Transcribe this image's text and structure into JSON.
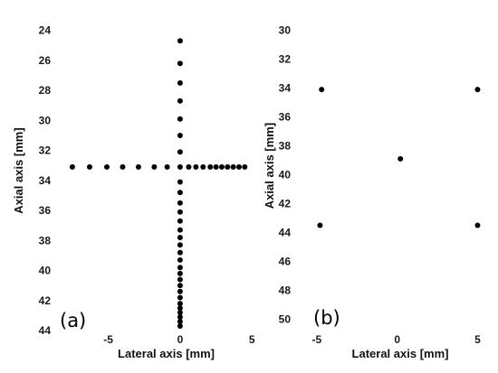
{
  "chart_data": [
    {
      "type": "scatter",
      "panel_label": "(a)",
      "xlabel": "Lateral axis [mm]",
      "ylabel": "Axial axis [mm]",
      "xlim": [
        -8,
        5.3
      ],
      "ylim": [
        44,
        23.9
      ],
      "y_inverted": true,
      "xticks": [
        -5,
        0,
        5
      ],
      "yticks": [
        24,
        26,
        28,
        30,
        32,
        34,
        36,
        38,
        40,
        42,
        44
      ],
      "grid": false,
      "series": [
        {
          "x": [
            0,
            0,
            0,
            0,
            0,
            0,
            0,
            0,
            0,
            0,
            0,
            0,
            0,
            0,
            0,
            0,
            0,
            0,
            0,
            0,
            0,
            0,
            0,
            0,
            0,
            0,
            0,
            0,
            0,
            0,
            -7.5,
            -6.3,
            -5.1,
            -4.0,
            -2.9,
            -1.8,
            -0.9,
            0.6,
            1.1,
            1.6,
            2.1,
            2.5,
            2.9,
            3.3,
            3.7,
            4.1,
            4.5
          ],
          "y": [
            24.7,
            26.2,
            27.5,
            28.7,
            29.9,
            31.0,
            32.1,
            33.1,
            34.1,
            34.8,
            35.5,
            36.1,
            36.7,
            37.3,
            37.8,
            38.3,
            38.8,
            39.3,
            39.8,
            40.2,
            40.6,
            41.0,
            41.4,
            41.8,
            42.2,
            42.5,
            42.8,
            43.1,
            43.4,
            43.7,
            33.1,
            33.1,
            33.1,
            33.1,
            33.1,
            33.1,
            33.1,
            33.1,
            33.1,
            33.1,
            33.1,
            33.1,
            33.1,
            33.1,
            33.1,
            33.1,
            33.1
          ]
        }
      ]
    },
    {
      "type": "scatter",
      "panel_label": "(b)",
      "xlabel": "Lateral axis [mm]",
      "ylabel": "Axial axis [mm]",
      "xlim": [
        -5.5,
        5.2
      ],
      "ylim": [
        50.1,
        29.9
      ],
      "y_inverted": true,
      "xticks": [
        -5,
        0,
        5
      ],
      "yticks": [
        30,
        32,
        34,
        36,
        38,
        40,
        42,
        44,
        46,
        48,
        50
      ],
      "grid": false,
      "series": [
        {
          "x": [
            -4.7,
            5.0,
            0.2,
            -4.8,
            5.0
          ],
          "y": [
            34.1,
            34.1,
            38.9,
            43.5,
            43.5
          ]
        }
      ]
    }
  ]
}
